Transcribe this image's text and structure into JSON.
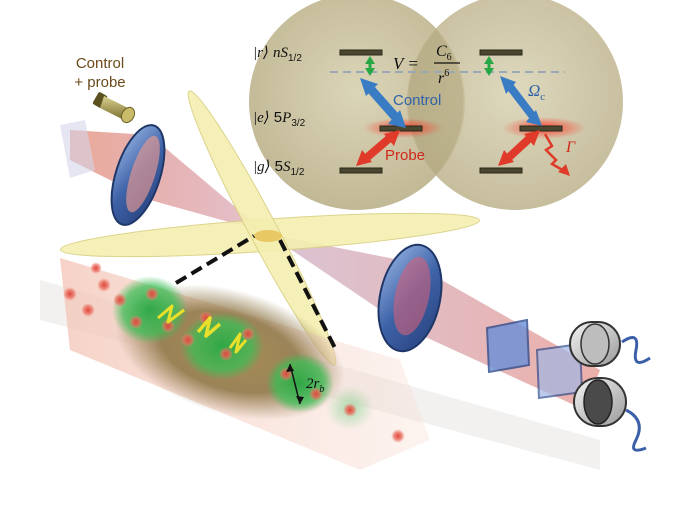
{
  "source_label": {
    "line1": "Control",
    "line2": "+ probe"
  },
  "levels": {
    "rydberg": {
      "ket": "|r⟩",
      "term": "nS",
      "sub": "1/2"
    },
    "excited": {
      "ket": "|e⟩",
      "term": "5P",
      "sub": "3/2"
    },
    "ground": {
      "ket": "|g⟩",
      "term": "5S",
      "sub": "1/2"
    }
  },
  "interaction": {
    "lhs": "V =",
    "numerator": "C",
    "num_sub": "6",
    "denominator": "r",
    "den_sup": "6"
  },
  "transitions": {
    "control": "Control",
    "probe": "Probe",
    "rabi": "Ω",
    "rabi_sub": "c",
    "decay": "Γ"
  },
  "blockade": {
    "label": "2r",
    "sub": "b"
  },
  "colors": {
    "control_beam": "#3a7cc4",
    "probe_beam": "#e03a2a",
    "blockade_sphere": "#b8ae88",
    "rydberg_exc": "#31b34a",
    "dipole_trap": "#f4efb0",
    "text_brown": "#6b4a1a"
  },
  "icons": [
    "light-source-icon",
    "lens-icon",
    "mirror-icon",
    "detector-icon",
    "lightning-icon",
    "atom-icon"
  ]
}
